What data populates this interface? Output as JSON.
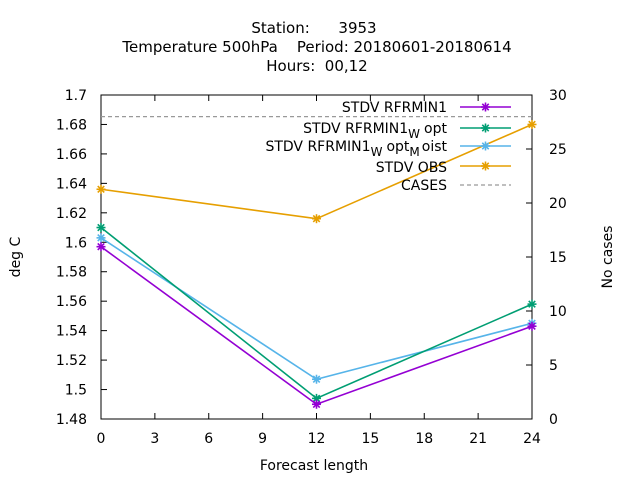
{
  "chart_data": {
    "type": "line",
    "title_lines": [
      "Station:      3953",
      "Temperature 500hPa    Period: 20180601-20180614",
      "Hours:  00,12"
    ],
    "xlabel": "Forecast length",
    "ylabel": "deg C",
    "y2label": "No cases",
    "xlim": [
      0,
      24
    ],
    "ylim": [
      1.48,
      1.7
    ],
    "y2lim": [
      0,
      30
    ],
    "xticks": [
      "0",
      "3",
      "6",
      "9",
      "12",
      "15",
      "18",
      "21",
      "24"
    ],
    "yticks": [
      "1.48",
      "1.5",
      "1.52",
      "1.54",
      "1.56",
      "1.58",
      "1.6",
      "1.62",
      "1.64",
      "1.66",
      "1.68",
      "1.7"
    ],
    "y2ticks": [
      "0",
      "5",
      "10",
      "15",
      "20",
      "25",
      "30"
    ],
    "grid": false,
    "legend_position": "top-right",
    "series": [
      {
        "name": "STDV RFRMIN1",
        "color": "#9400d3",
        "axis": "y",
        "marker": "star",
        "x": [
          0,
          12,
          24
        ],
        "y": [
          1.597,
          1.49,
          1.543
        ]
      },
      {
        "name": "STDV RFRMIN1 Wopt",
        "name_base": "STDV RFRMIN1",
        "name_sub": "W",
        "name_tail": "opt",
        "color": "#009e73",
        "axis": "y",
        "marker": "star",
        "x": [
          0,
          12,
          24
        ],
        "y": [
          1.61,
          1.494,
          1.558
        ]
      },
      {
        "name": "STDV RFRMIN1 Wopt Moist",
        "name_base": "STDV RFRMIN1",
        "name_sub": "W",
        "name_mid": "opt",
        "name_sub2": "M",
        "name_tail": "oist",
        "color": "#56b4e9",
        "axis": "y",
        "marker": "star",
        "x": [
          0,
          12,
          24
        ],
        "y": [
          1.603,
          1.507,
          1.545
        ]
      },
      {
        "name": "STDV OBS",
        "color": "#e69f00",
        "axis": "y",
        "marker": "star",
        "x": [
          0,
          12,
          24
        ],
        "y": [
          1.636,
          1.616,
          1.68
        ]
      },
      {
        "name": "CASES",
        "color": "#999999",
        "axis": "y2",
        "marker": "none",
        "dashed": true,
        "x": [
          0,
          12,
          24
        ],
        "y": [
          28,
          28,
          28
        ]
      }
    ]
  }
}
